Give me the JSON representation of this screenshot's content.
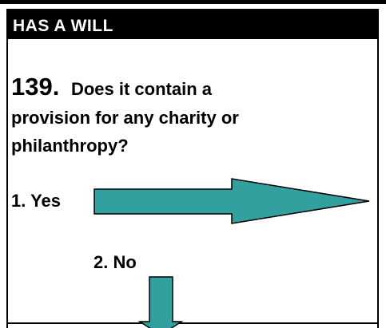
{
  "header": {
    "title": "HAS A WILL"
  },
  "question": {
    "number": "139.",
    "lines": [
      "Does it contain a",
      "provision for any charity or",
      "philanthropy?"
    ]
  },
  "options": [
    "1. Yes",
    "2. No"
  ]
}
